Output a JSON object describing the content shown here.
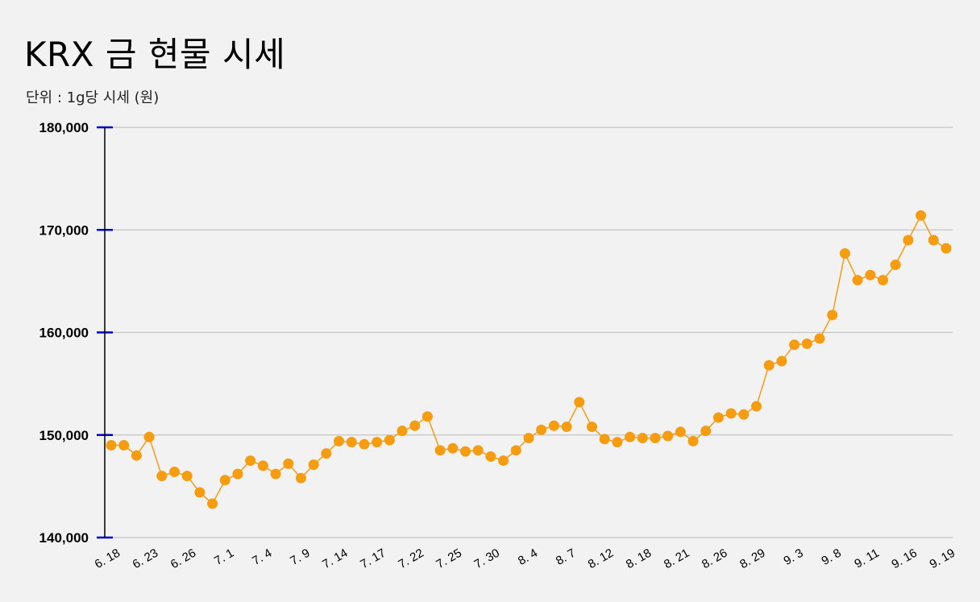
{
  "chart_data": {
    "type": "line",
    "title": "KRX 금 현물 시세",
    "subtitle": "단위 : 1g당 시세 (원)",
    "ylim": [
      140000,
      180000
    ],
    "yticks": [
      "140,000",
      "150,000",
      "160,000",
      "170,000",
      "180,000"
    ],
    "grid": true,
    "series_color": "#f59c10",
    "axis_tick_color": "#0000c8",
    "x_tick_labels": [
      "6. 18",
      "6. 23",
      "6. 26",
      "7. 1",
      "7. 4",
      "7. 9",
      "7. 14",
      "7. 17",
      "7. 22",
      "7. 25",
      "7. 30",
      "8. 4",
      "8. 7",
      "8. 12",
      "8. 18",
      "8. 21",
      "8. 26",
      "8. 29",
      "9. 3",
      "9. 8",
      "9. 11",
      "9. 16",
      "9. 19"
    ],
    "values": [
      149000,
      149000,
      148000,
      149800,
      146000,
      146400,
      146000,
      144400,
      143300,
      145600,
      146200,
      147500,
      147000,
      146200,
      147200,
      145800,
      147100,
      148200,
      149400,
      149300,
      149100,
      149300,
      149500,
      150400,
      150900,
      151800,
      148500,
      148700,
      148400,
      148500,
      147900,
      147500,
      148500,
      149700,
      150500,
      150900,
      150800,
      153200,
      150800,
      149600,
      149300,
      149800,
      149700,
      149700,
      149900,
      150300,
      149400,
      150400,
      151700,
      152100,
      152000,
      152800,
      156800,
      157200,
      158800,
      158900,
      159400,
      161700,
      167700,
      165100,
      165600,
      165100,
      166600,
      169000,
      171400,
      169000,
      168200
    ]
  }
}
